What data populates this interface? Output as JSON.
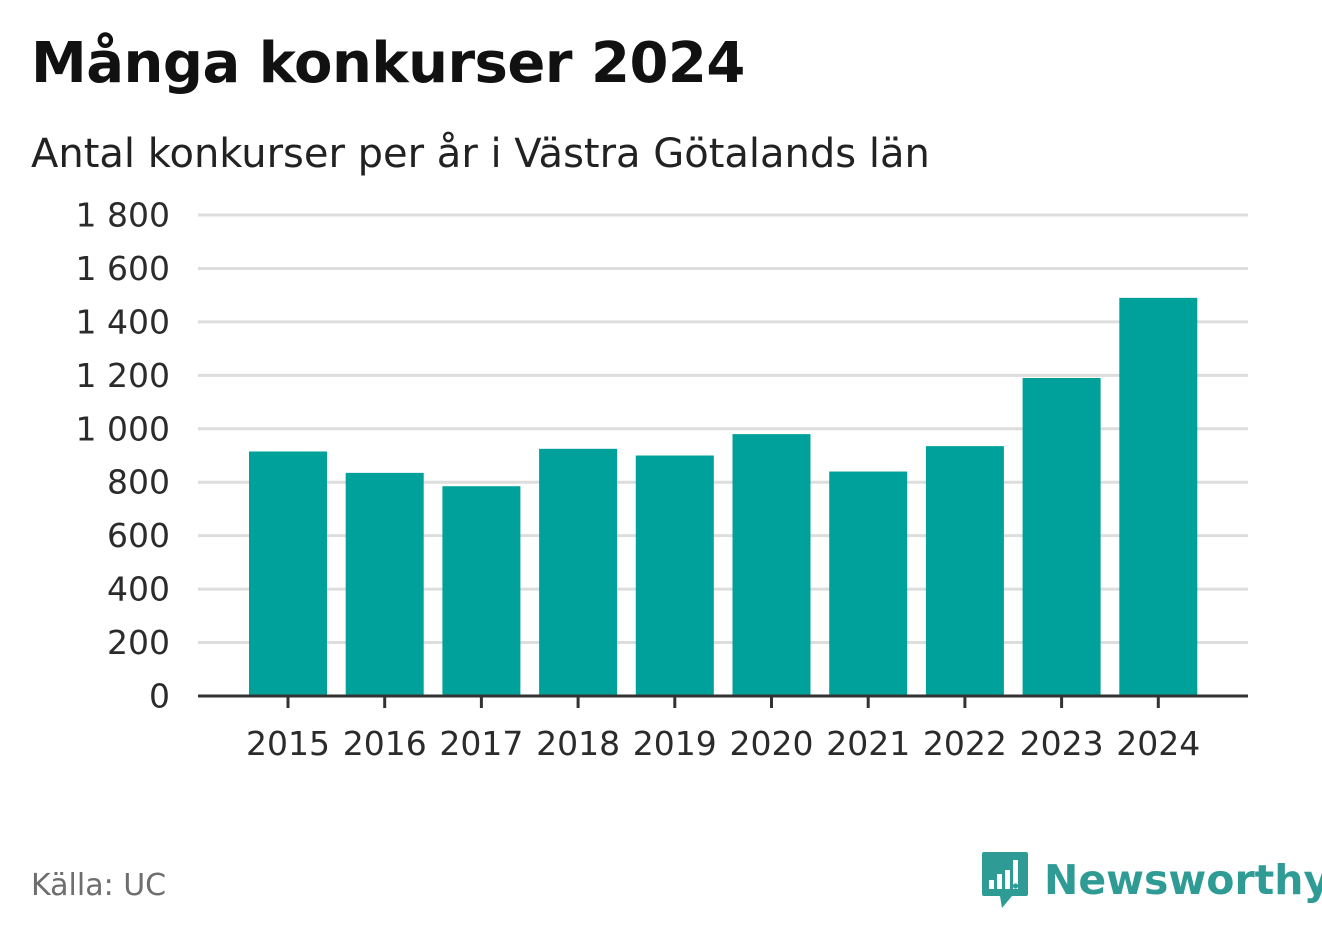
{
  "header": {
    "title": "Många konkurser 2024",
    "subtitle": "Antal konkurser per år i Västra Götalands län"
  },
  "footer": {
    "source": "Källa: UC",
    "brand": "Newsworthy",
    "brand_icon": "newsworthy-logo-icon",
    "brand_color": "#2f9b95"
  },
  "chart_data": {
    "type": "bar",
    "title": "Många konkurser 2024",
    "subtitle": "Antal konkurser per år i Västra Götalands län",
    "categories": [
      "2015",
      "2016",
      "2017",
      "2018",
      "2019",
      "2020",
      "2021",
      "2022",
      "2023",
      "2024"
    ],
    "values": [
      915,
      835,
      785,
      925,
      900,
      980,
      840,
      935,
      1190,
      1490
    ],
    "ylim": [
      0,
      1800
    ],
    "yticks": [
      0,
      200,
      400,
      600,
      800,
      1000,
      1200,
      1400,
      1600,
      1800
    ],
    "ytick_labels": [
      "0",
      "200",
      "400",
      "600",
      "800",
      "1 000",
      "1 200",
      "1 400",
      "1 600",
      "1 800"
    ],
    "grid": true,
    "bar_color": "#00a19a",
    "grid_color": "#dddddd",
    "axis_color": "#333333"
  }
}
